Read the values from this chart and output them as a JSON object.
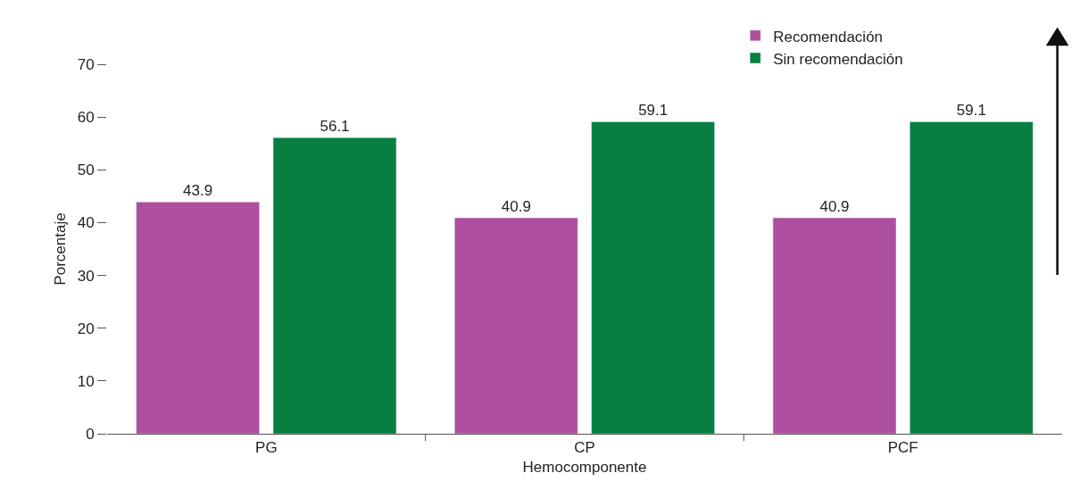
{
  "chart_data": {
    "type": "bar",
    "xlabel": "Hemocomponente",
    "ylabel": "Porcentaje",
    "categories": [
      "PG",
      "CP",
      "PCF"
    ],
    "series": [
      {
        "name": "Recomendación",
        "color": "#ad4f9e",
        "values": [
          43.9,
          40.9,
          40.9
        ]
      },
      {
        "name": "Sin recomendación",
        "color": "#067f40",
        "values": [
          56.1,
          59.1,
          59.1
        ]
      }
    ],
    "ylim": [
      0,
      70
    ],
    "yticks": [
      0,
      10,
      20,
      30,
      40,
      50,
      60,
      70
    ],
    "data_labels": true,
    "legend": "top right"
  }
}
